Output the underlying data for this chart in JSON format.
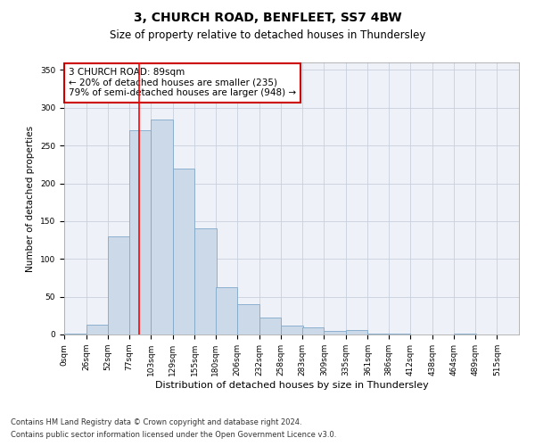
{
  "title1": "3, CHURCH ROAD, BENFLEET, SS7 4BW",
  "title2": "Size of property relative to detached houses in Thundersley",
  "xlabel": "Distribution of detached houses by size in Thundersley",
  "ylabel": "Number of detached properties",
  "bin_labels": [
    "0sqm",
    "26sqm",
    "52sqm",
    "77sqm",
    "103sqm",
    "129sqm",
    "155sqm",
    "180sqm",
    "206sqm",
    "232sqm",
    "258sqm",
    "283sqm",
    "309sqm",
    "335sqm",
    "361sqm",
    "386sqm",
    "412sqm",
    "438sqm",
    "464sqm",
    "489sqm",
    "515sqm"
  ],
  "bin_edges": [
    0,
    26,
    52,
    77,
    103,
    129,
    155,
    180,
    206,
    232,
    258,
    283,
    309,
    335,
    361,
    386,
    412,
    438,
    464,
    489,
    515
  ],
  "bar_heights": [
    1,
    13,
    130,
    270,
    285,
    220,
    140,
    62,
    40,
    22,
    12,
    10,
    5,
    6,
    1,
    1,
    0,
    0,
    1,
    0,
    0
  ],
  "bar_color": "#ccd9e8",
  "bar_edge_color": "#7fa8c9",
  "grid_color": "#c8d0dc",
  "bg_color": "#eef2f8",
  "red_line_x": 89,
  "annotation_text_line1": "3 CHURCH ROAD: 89sqm",
  "annotation_text_line2": "← 20% of detached houses are smaller (235)",
  "annotation_text_line3": "79% of semi-detached houses are larger (948) →",
  "annotation_box_color": "#ffffff",
  "annotation_border_color": "#cc0000",
  "footer1": "Contains HM Land Registry data © Crown copyright and database right 2024.",
  "footer2": "Contains public sector information licensed under the Open Government Licence v3.0.",
  "ylim": [
    0,
    360
  ],
  "yticks": [
    0,
    50,
    100,
    150,
    200,
    250,
    300,
    350
  ],
  "title1_fontsize": 10,
  "title2_fontsize": 8.5,
  "xlabel_fontsize": 8,
  "ylabel_fontsize": 7.5,
  "tick_fontsize": 6.5,
  "annotation_fontsize": 7.5,
  "footer_fontsize": 6
}
